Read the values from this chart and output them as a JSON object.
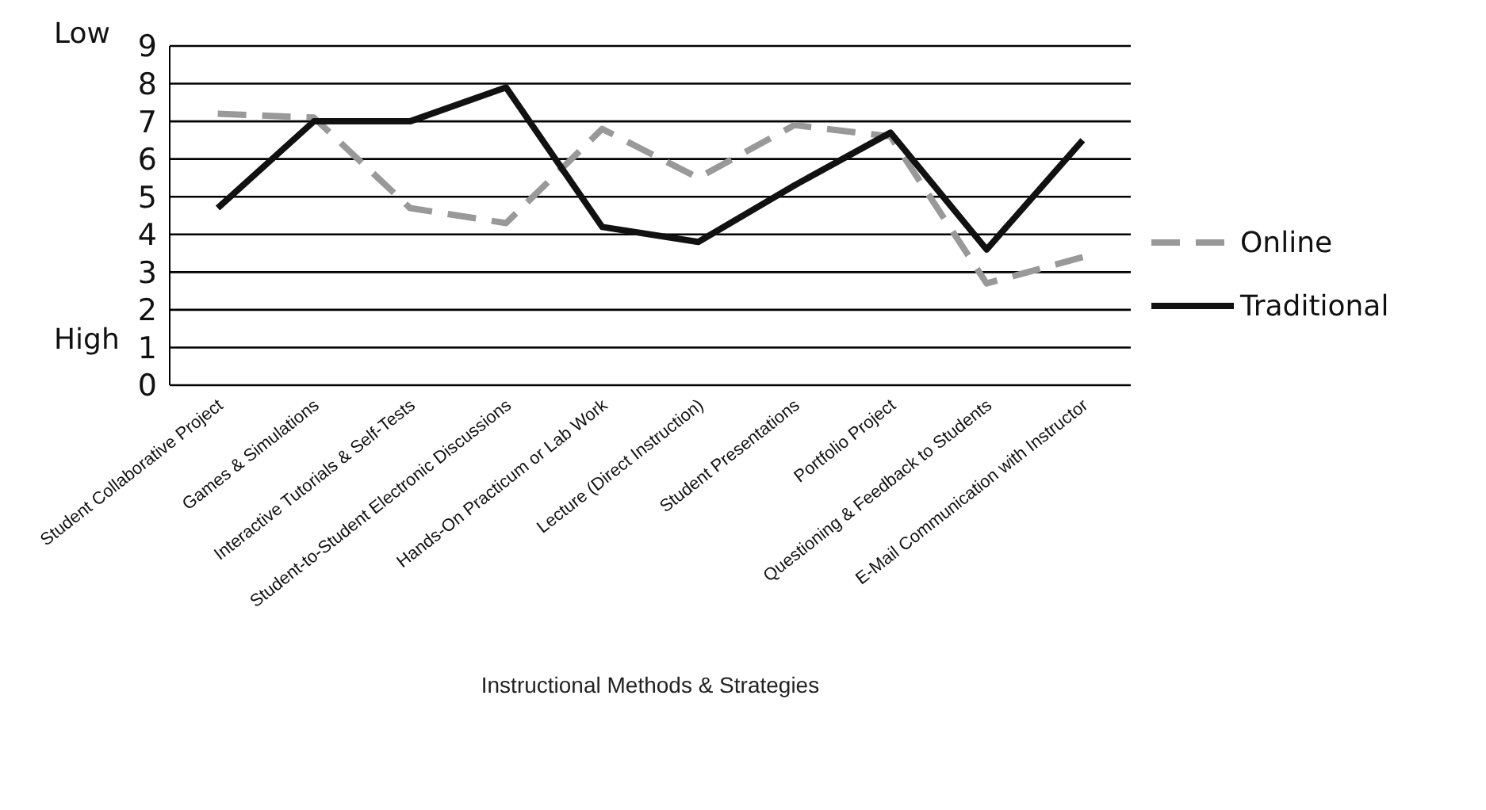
{
  "chart_data": {
    "type": "line",
    "xlabel": "Instructional Methods & Strategies",
    "annotations": [
      "Low",
      "High"
    ],
    "categories": [
      "Student Collaborative Project",
      "Games & Simulations",
      "Interactive Tutorials & Self-Tests",
      "Student-to-Student Electronic Discussions",
      "Hands-On Practicum or Lab Work",
      "Lecture (Direct Instruction)",
      "Student Presentations",
      "Portfolio Project",
      "Questioning & Feedback to Students",
      "E-Mail Communication with Instructor"
    ],
    "series": [
      {
        "name": "Online",
        "color": "#999999",
        "line_style": "dashed",
        "values": [
          7.2,
          7.1,
          4.7,
          4.3,
          6.8,
          5.5,
          6.9,
          6.6,
          2.7,
          3.4
        ]
      },
      {
        "name": "Traditional",
        "color": "#111111",
        "line_style": "solid",
        "values": [
          4.7,
          7.0,
          7.0,
          7.9,
          4.2,
          3.8,
          5.3,
          6.7,
          3.6,
          6.5
        ]
      }
    ],
    "ylim": [
      0,
      9
    ],
    "yticks": [
      0,
      1,
      2,
      3,
      4,
      5,
      6,
      7,
      8,
      9
    ],
    "grid": "y",
    "legend": "right",
    "marker": "none"
  }
}
